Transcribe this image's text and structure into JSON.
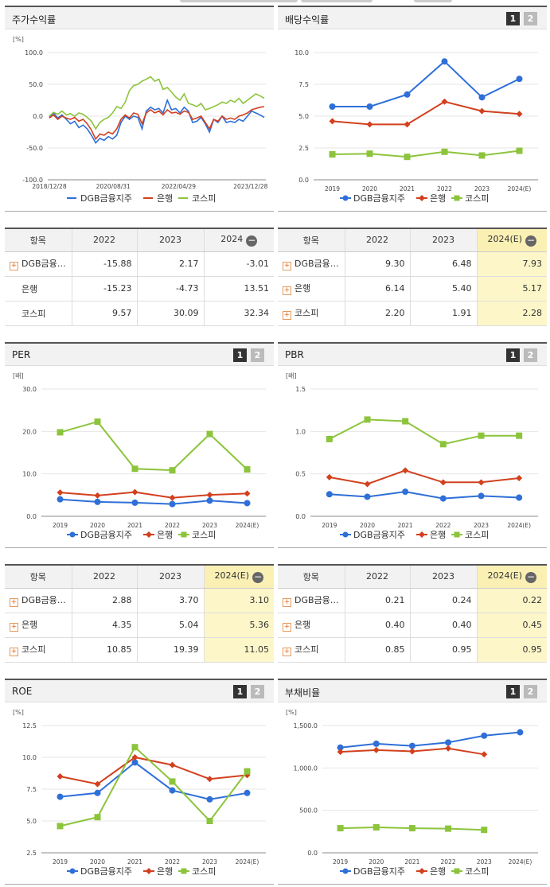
{
  "colors": {
    "dgb": "#2e6fd8",
    "bank": "#d2401e",
    "kospi": "#8cc43c",
    "highlight": "#fdf6c9"
  },
  "panels": [
    {
      "title": "주가수익률",
      "unit": "[%]",
      "has_pages": false
    },
    {
      "title": "배당수익률",
      "unit": "",
      "has_pages": true
    },
    {
      "title": "PER",
      "unit": "[배]",
      "has_pages": true
    },
    {
      "title": "PBR",
      "unit": "[배]",
      "has_pages": true
    },
    {
      "title": "ROE",
      "unit": "[%]",
      "has_pages": true
    },
    {
      "title": "부채비율",
      "unit": "[%]",
      "has_pages": true
    }
  ],
  "pages": {
    "p1": "1",
    "p2": "2"
  },
  "legend": {
    "dgb": "DGB금융지주",
    "bank": "은행",
    "kospi": "코스피"
  },
  "tables": [
    {
      "headers": [
        "항목",
        "2022",
        "2023",
        "2024"
      ],
      "rows": [
        {
          "label": "DGB금융…",
          "plus": true,
          "values": [
            "-15.88",
            "2.17",
            "-3.01"
          ]
        },
        {
          "label": "은행",
          "plus": false,
          "values": [
            "-15.23",
            "-4.73",
            "13.51"
          ]
        },
        {
          "label": "코스피",
          "plus": false,
          "values": [
            "9.57",
            "30.09",
            "32.34"
          ]
        }
      ],
      "highlight_last": false
    },
    {
      "headers": [
        "항목",
        "2022",
        "2023",
        "2024(E)"
      ],
      "rows": [
        {
          "label": "DGB금융…",
          "plus": true,
          "values": [
            "9.30",
            "6.48",
            "7.93"
          ]
        },
        {
          "label": "은행",
          "plus": true,
          "values": [
            "6.14",
            "5.40",
            "5.17"
          ]
        },
        {
          "label": "코스피",
          "plus": true,
          "values": [
            "2.20",
            "1.91",
            "2.28"
          ]
        }
      ],
      "highlight_last": true
    },
    {
      "headers": [
        "항목",
        "2022",
        "2023",
        "2024(E)"
      ],
      "rows": [
        {
          "label": "DGB금융…",
          "plus": true,
          "values": [
            "2.88",
            "3.70",
            "3.10"
          ]
        },
        {
          "label": "은행",
          "plus": true,
          "values": [
            "4.35",
            "5.04",
            "5.36"
          ]
        },
        {
          "label": "코스피",
          "plus": true,
          "values": [
            "10.85",
            "19.39",
            "11.05"
          ]
        }
      ],
      "highlight_last": true
    },
    {
      "headers": [
        "항목",
        "2022",
        "2023",
        "2024(E)"
      ],
      "rows": [
        {
          "label": "DGB금융…",
          "plus": true,
          "values": [
            "0.21",
            "0.24",
            "0.22"
          ]
        },
        {
          "label": "은행",
          "plus": true,
          "values": [
            "0.40",
            "0.40",
            "0.45"
          ]
        },
        {
          "label": "코스피",
          "plus": true,
          "values": [
            "0.85",
            "0.95",
            "0.95"
          ]
        }
      ],
      "highlight_last": true
    }
  ],
  "chart_data": [
    {
      "type": "line",
      "title": "주가수익률",
      "ylabel": "[%]",
      "ylim": [
        -100,
        100
      ],
      "yticks": [
        "100.0",
        "50.0",
        "0.0",
        "-50.0",
        "-100.0"
      ],
      "xticks": [
        "2018/12/28",
        "2020/08/31",
        "2022/04/29",
        "2023/12/28"
      ],
      "series": [
        {
          "name": "DGB금융지주",
          "values": [
            -2,
            5,
            -3,
            2,
            -5,
            -12,
            -8,
            -18,
            -14,
            -20,
            -30,
            -42,
            -35,
            -38,
            -32,
            -36,
            -30,
            -10,
            0,
            -5,
            0,
            -2,
            -20,
            8,
            14,
            10,
            12,
            5,
            25,
            10,
            12,
            5,
            14,
            8,
            -10,
            -8,
            -2,
            -12,
            -25,
            -5,
            -10,
            0,
            -10,
            -8,
            -10,
            -5,
            -8,
            0,
            8,
            5,
            2,
            -2
          ]
        },
        {
          "name": "은행",
          "values": [
            -3,
            2,
            -5,
            0,
            -3,
            -5,
            -2,
            -8,
            -5,
            -12,
            -22,
            -36,
            -28,
            -30,
            -25,
            -28,
            -20,
            -5,
            2,
            -3,
            5,
            3,
            -12,
            5,
            10,
            5,
            8,
            2,
            10,
            5,
            6,
            3,
            8,
            6,
            -5,
            -3,
            0,
            -10,
            -20,
            -5,
            -8,
            0,
            -5,
            -3,
            -5,
            0,
            2,
            5,
            10,
            12,
            14,
            15
          ]
        },
        {
          "name": "코스피",
          "values": [
            0,
            6,
            3,
            8,
            2,
            4,
            0,
            5,
            3,
            -2,
            -8,
            -20,
            -10,
            -5,
            -2,
            5,
            15,
            12,
            22,
            40,
            48,
            50,
            55,
            58,
            62,
            55,
            58,
            42,
            45,
            38,
            30,
            25,
            35,
            20,
            18,
            15,
            20,
            10,
            12,
            15,
            18,
            22,
            20,
            25,
            22,
            28,
            20,
            25,
            30,
            35,
            32,
            28
          ]
        }
      ]
    },
    {
      "type": "line",
      "title": "배당수익률",
      "ylim": [
        0,
        10
      ],
      "yticks": [
        "10.0",
        "7.5",
        "5.0",
        "2.5",
        "0.0"
      ],
      "categories": [
        "2019",
        "2020",
        "2021",
        "2022",
        "2023",
        "2024(E)"
      ],
      "series": [
        {
          "name": "DGB금융지주",
          "values": [
            5.75,
            5.75,
            6.7,
            9.3,
            6.48,
            7.93
          ]
        },
        {
          "name": "은행",
          "values": [
            4.6,
            4.35,
            4.35,
            6.14,
            5.4,
            5.17
          ]
        },
        {
          "name": "코스피",
          "values": [
            2.0,
            2.05,
            1.8,
            2.2,
            1.91,
            2.28
          ]
        }
      ]
    },
    {
      "type": "line",
      "title": "PER",
      "ylabel": "[배]",
      "ylim": [
        0,
        30
      ],
      "yticks": [
        "30.0",
        "20.0",
        "10.0",
        "0.0"
      ],
      "categories": [
        "2019",
        "2020",
        "2021",
        "2022",
        "2023",
        "2024(E)"
      ],
      "series": [
        {
          "name": "DGB금융지주",
          "values": [
            4.0,
            3.4,
            3.2,
            2.88,
            3.7,
            3.1
          ]
        },
        {
          "name": "은행",
          "values": [
            5.6,
            4.9,
            5.7,
            4.35,
            5.04,
            5.36
          ]
        },
        {
          "name": "코스피",
          "values": [
            19.8,
            22.3,
            11.2,
            10.85,
            19.39,
            11.05
          ]
        }
      ]
    },
    {
      "type": "line",
      "title": "PBR",
      "ylabel": "[배]",
      "ylim": [
        0,
        1.5
      ],
      "yticks": [
        "1.5",
        "1.0",
        "0.5",
        "0.0"
      ],
      "categories": [
        "2019",
        "2020",
        "2021",
        "2022",
        "2023",
        "2024(E)"
      ],
      "series": [
        {
          "name": "DGB금융지주",
          "values": [
            0.26,
            0.23,
            0.29,
            0.21,
            0.24,
            0.22
          ]
        },
        {
          "name": "은행",
          "values": [
            0.46,
            0.38,
            0.54,
            0.4,
            0.4,
            0.45
          ]
        },
        {
          "name": "코스피",
          "values": [
            0.91,
            1.14,
            1.12,
            0.85,
            0.95,
            0.95
          ]
        }
      ]
    },
    {
      "type": "line",
      "title": "ROE",
      "ylabel": "[%]",
      "ylim": [
        2.5,
        12.5
      ],
      "yticks": [
        "12.5",
        "10.0",
        "7.5",
        "5.0",
        "2.5"
      ],
      "categories": [
        "2019",
        "2020",
        "2021",
        "2022",
        "2023",
        "2024(E)"
      ],
      "series": [
        {
          "name": "DGB금융지주",
          "values": [
            6.9,
            7.2,
            9.6,
            7.4,
            6.7,
            7.2
          ]
        },
        {
          "name": "은행",
          "values": [
            8.5,
            7.9,
            10.0,
            9.4,
            8.3,
            8.6
          ]
        },
        {
          "name": "코스피",
          "values": [
            4.6,
            5.3,
            10.8,
            8.1,
            5.0,
            8.9
          ]
        }
      ]
    },
    {
      "type": "line",
      "title": "부채비율",
      "ylabel": "[%]",
      "ylim": [
        0,
        1500
      ],
      "yticks": [
        "1,500.0",
        "1,000.0",
        "500.0",
        "0.0"
      ],
      "categories": [
        "2019",
        "2020",
        "2021",
        "2022",
        "2023",
        "2024(E)"
      ],
      "series": [
        {
          "name": "DGB금융지주",
          "values": [
            1240,
            1285,
            1260,
            1300,
            1380,
            1420
          ]
        },
        {
          "name": "은행",
          "values": [
            1190,
            1210,
            1195,
            1230,
            1160,
            null
          ]
        },
        {
          "name": "코스피",
          "values": [
            290,
            300,
            290,
            285,
            270,
            null
          ]
        }
      ]
    }
  ]
}
